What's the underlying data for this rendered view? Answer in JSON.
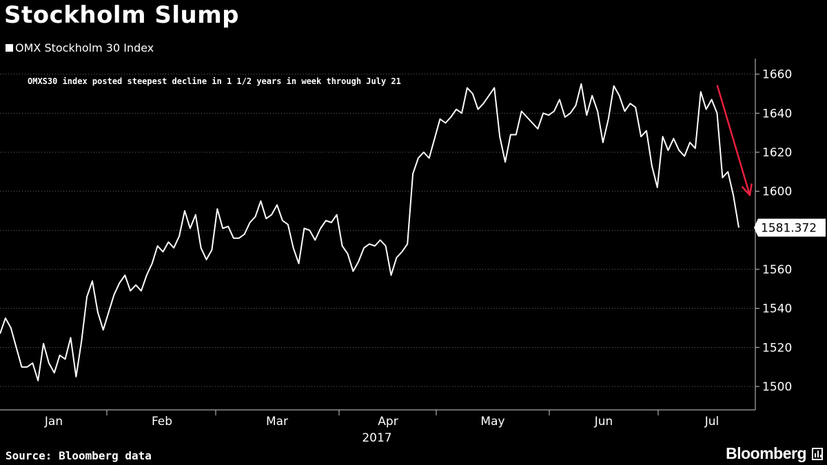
{
  "header": {
    "title": "Stockholm Slump"
  },
  "footer": {
    "source": "Source: Bloomberg data",
    "brand": "Bloomberg"
  },
  "chart_data": {
    "type": "line",
    "title": "Stockholm Slump",
    "series": [
      {
        "name": "OMX Stockholm 30 Index",
        "color": "#ffffff",
        "last_value_label": "1581.372",
        "values": [
          1527,
          1535,
          1530,
          1520,
          1510,
          1510,
          1512,
          1503,
          1522,
          1512,
          1507,
          1516,
          1514,
          1525,
          1505,
          1523,
          1546,
          1554,
          1538,
          1529,
          1538,
          1547,
          1553,
          1557,
          1549,
          1552,
          1549,
          1557,
          1563,
          1572,
          1569,
          1574,
          1571,
          1577,
          1590,
          1581,
          1588,
          1571,
          1565,
          1570,
          1591,
          1581,
          1582,
          1576,
          1576,
          1578,
          1584,
          1587,
          1595,
          1586,
          1588,
          1593,
          1585,
          1583,
          1571,
          1563,
          1581,
          1580,
          1575,
          1581,
          1585,
          1584,
          1588,
          1572,
          1568,
          1559,
          1564,
          1571,
          1573,
          1572,
          1575,
          1572,
          1557,
          1566,
          1569,
          1573,
          1609,
          1617,
          1620,
          1617,
          1627,
          1637,
          1635,
          1638,
          1642,
          1640,
          1653,
          1650,
          1642,
          1645,
          1649,
          1653,
          1628,
          1615,
          1629,
          1629,
          1641,
          1638,
          1635,
          1632,
          1640,
          1639,
          1641,
          1647,
          1638,
          1640,
          1644,
          1655,
          1639,
          1649,
          1641,
          1625,
          1637,
          1654,
          1649,
          1641,
          1645,
          1643,
          1628,
          1631,
          1613,
          1602,
          1628,
          1621,
          1627,
          1621,
          1618,
          1625,
          1622,
          1651,
          1642,
          1647,
          1640,
          1607,
          1610,
          1598,
          1581.372
        ]
      }
    ],
    "x_axis": {
      "month_labels": [
        "Jan",
        "Feb",
        "Mar",
        "Apr",
        "May",
        "Jun",
        "Jul"
      ],
      "year_label": "2017"
    },
    "y_axis": {
      "ticks": [
        1500,
        1520,
        1540,
        1560,
        1580,
        1600,
        1620,
        1640,
        1660
      ],
      "tick_labels": [
        "1500",
        "1520",
        "1540",
        "1560",
        "",
        "1600",
        "1620",
        "1640",
        "1660"
      ],
      "ylim": [
        1488,
        1668
      ],
      "position": "right"
    },
    "grid": "horizontal-dotted",
    "annotations": [
      {
        "text": "OMXS30 index posted steepest decline in 1 1/2 years in week through July 21",
        "color": "#ffffff"
      },
      {
        "kind": "arrow",
        "color": "#e8203e",
        "from_value": 1654,
        "to_value": 1598
      }
    ]
  }
}
